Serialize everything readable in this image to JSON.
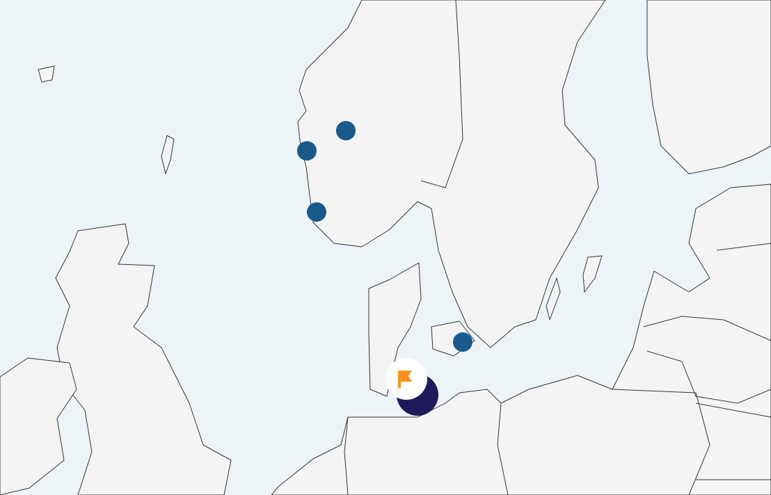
{
  "map": {
    "colors": {
      "sea": "#edf4f8",
      "land": "#f4f4f4",
      "coastline": "#333333",
      "marker": "#1a5a8a",
      "cluster": "#1e1b5a",
      "flag": "#f7931e"
    },
    "markers": [
      {
        "type": "location-pin",
        "region": "western-norway-north"
      },
      {
        "type": "location-pin",
        "region": "western-norway-coast"
      },
      {
        "type": "location-pin",
        "region": "southwest-norway"
      },
      {
        "type": "location-pin",
        "region": "zealand-denmark"
      }
    ],
    "cluster": {
      "icon": "flag-icon"
    }
  }
}
